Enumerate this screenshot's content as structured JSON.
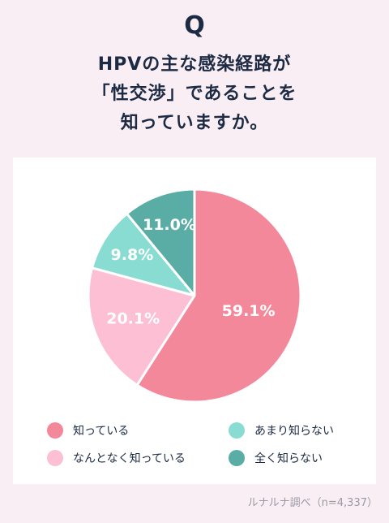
{
  "header": {
    "q_mark": "Q",
    "question_lines": [
      "HPVの主な感染経路が",
      "「性交渉」であることを",
      "知っていますか。"
    ]
  },
  "chart_data": {
    "type": "pie",
    "title": "",
    "slices": [
      {
        "label": "知っている",
        "value": 59.1,
        "display": "59.1%",
        "color": "#f3889a"
      },
      {
        "label": "なんとなく知っている",
        "value": 20.1,
        "display": "20.1%",
        "color": "#fcbfd4"
      },
      {
        "label": "あまり知らない",
        "value": 9.8,
        "display": "9.8%",
        "color": "#89dcd2"
      },
      {
        "label": "全く知らない",
        "value": 11.0,
        "display": "11.0%",
        "color": "#5aada4"
      }
    ],
    "start": "top",
    "direction": "clockwise"
  },
  "legend": [
    {
      "label": "知っている",
      "color": "#f3889a"
    },
    {
      "label": "あまり知らない",
      "color": "#89dcd2"
    },
    {
      "label": "なんとなく知っている",
      "color": "#fcbfd4"
    },
    {
      "label": "全く知らない",
      "color": "#5aada4"
    }
  ],
  "source": "ルナルナ調べ（n=4,337）"
}
